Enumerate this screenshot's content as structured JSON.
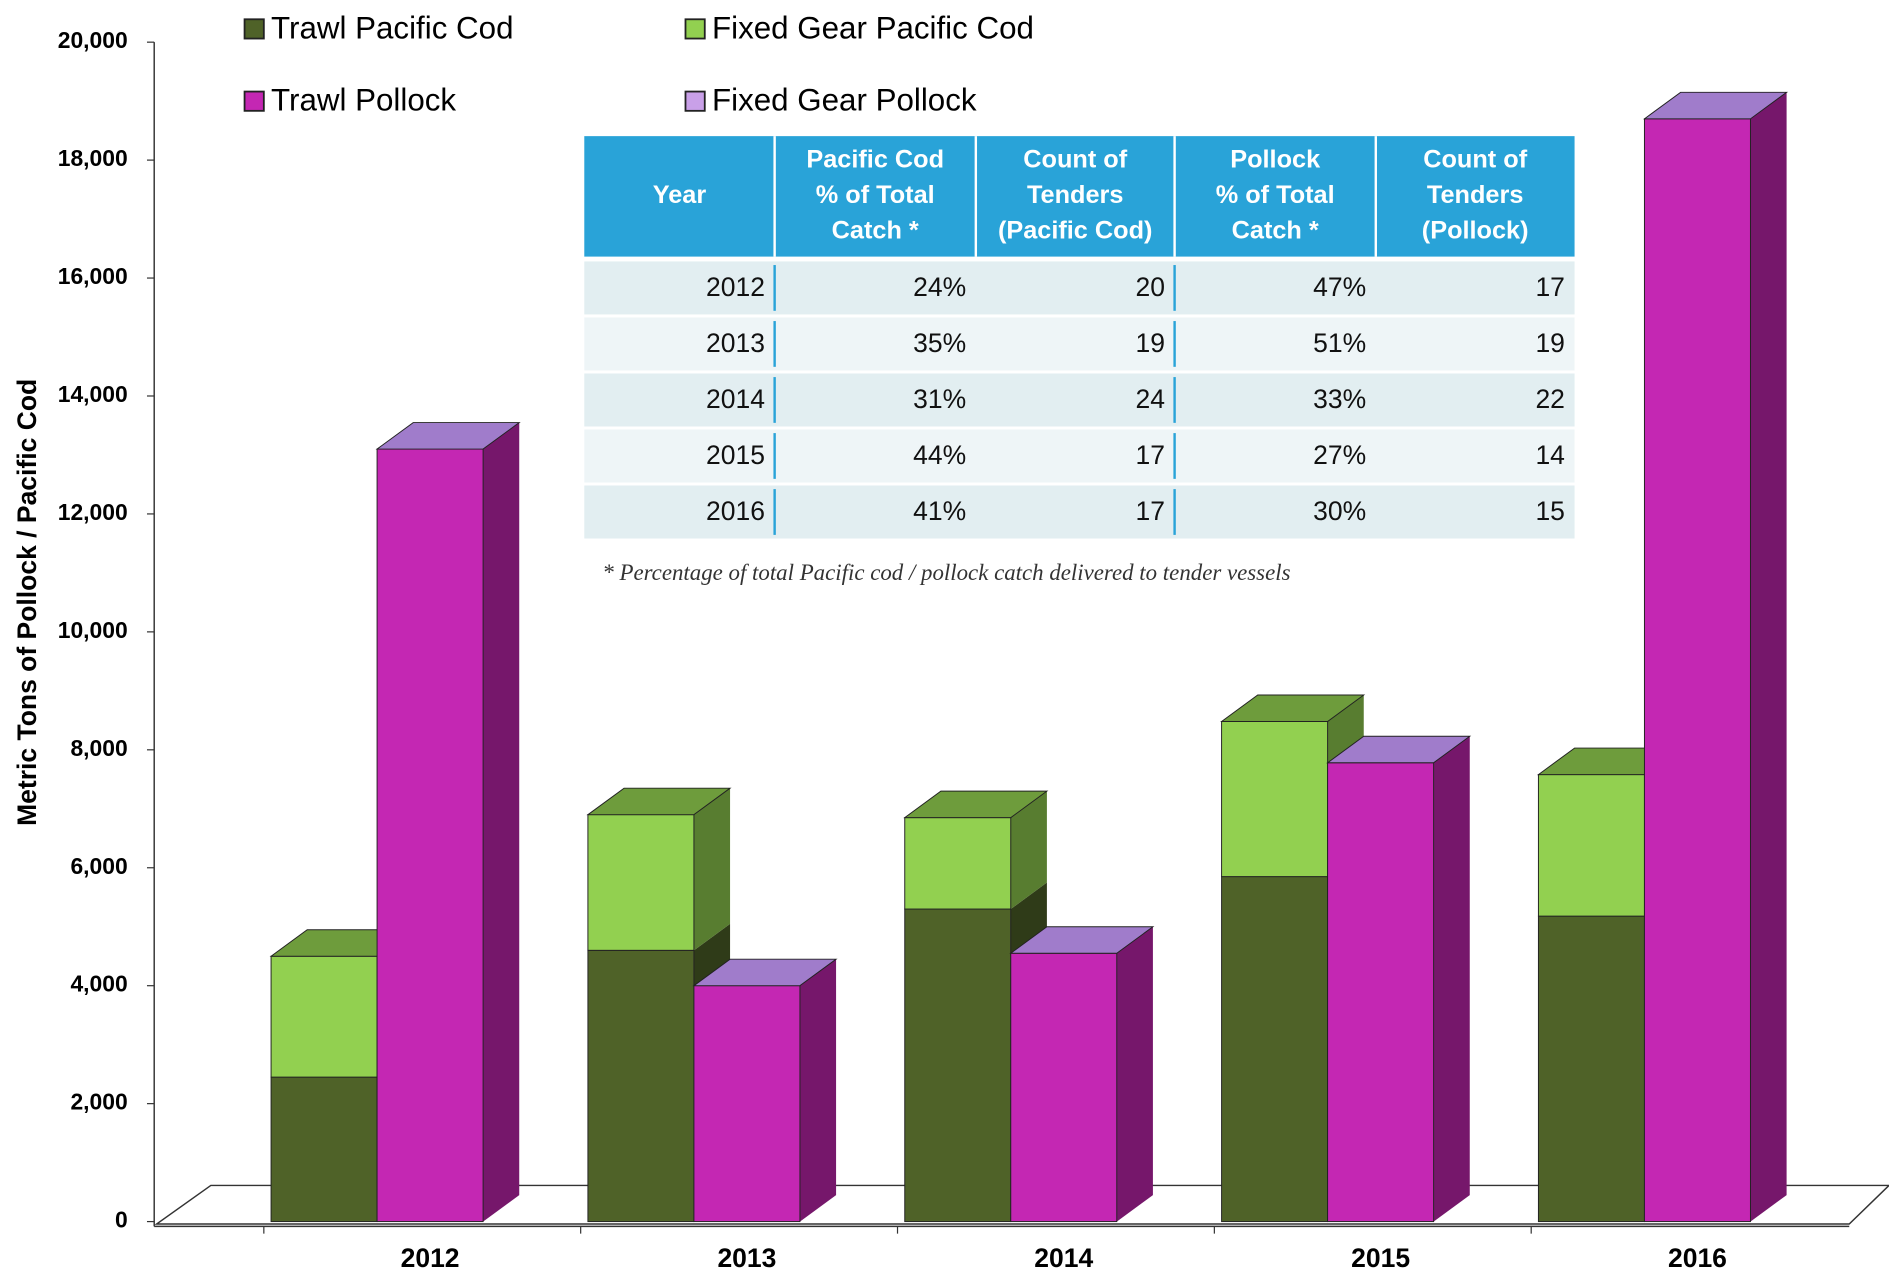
{
  "chart_data": {
    "type": "bar3d_stacked",
    "ylabel": "Metric Tons of Pollock / Pacific Cod",
    "categories": [
      "2012",
      "2013",
      "2014",
      "2015",
      "2016"
    ],
    "series": [
      {
        "name": "Trawl Pacific Cod",
        "color": "#4f6228",
        "stack": "cod",
        "values": [
          2450,
          4600,
          5300,
          5850,
          5180
        ]
      },
      {
        "name": "Fixed Gear Pacific Cod",
        "color": "#92d050",
        "stack": "cod",
        "values": [
          2050,
          2300,
          1550,
          2630,
          2400
        ]
      },
      {
        "name": "Trawl Pollock",
        "color": "#c427b3",
        "stack": "pollock",
        "values": [
          13100,
          4000,
          4550,
          7780,
          18700
        ]
      },
      {
        "name": "Fixed Gear Pollock",
        "color": "#c9a0e8",
        "stack": "pollock",
        "values": [
          0,
          0,
          0,
          0,
          0
        ]
      }
    ],
    "ylim": [
      0,
      20000
    ],
    "yticks": [
      0,
      {
        "value": 2000,
        "label": "2,000"
      },
      {
        "value": 4000,
        "label": "4,000"
      },
      {
        "value": 6000,
        "label": "6,000"
      },
      {
        "value": 8000,
        "label": "8,000"
      },
      {
        "value": 10000,
        "label": "10,000"
      },
      {
        "value": 12000,
        "label": "12,000"
      },
      {
        "value": 14000,
        "label": "14,000"
      },
      {
        "value": 16000,
        "label": "16,000"
      },
      {
        "value": 18000,
        "label": "18,000"
      },
      {
        "value": 20000,
        "label": "20,000"
      }
    ]
  },
  "table": {
    "header": [
      [
        "Year"
      ],
      [
        "Pacific Cod",
        "% of Total",
        "Catch *"
      ],
      [
        "Count of",
        "Tenders",
        "(Pacific Cod)"
      ],
      [
        "Pollock",
        "% of Total",
        "Catch *"
      ],
      [
        "Count of",
        "Tenders",
        "(Pollock)"
      ]
    ],
    "rows": [
      [
        "2012",
        "24%",
        "20",
        "47%",
        "17"
      ],
      [
        "2013",
        "35%",
        "19",
        "51%",
        "19"
      ],
      [
        "2014",
        "31%",
        "24",
        "33%",
        "22"
      ],
      [
        "2015",
        "44%",
        "17",
        "27%",
        "14"
      ],
      [
        "2016",
        "41%",
        "17",
        "30%",
        "15"
      ]
    ],
    "note": "* Percentage of  total Pacific cod / pollock catch delivered to tender vessels"
  }
}
